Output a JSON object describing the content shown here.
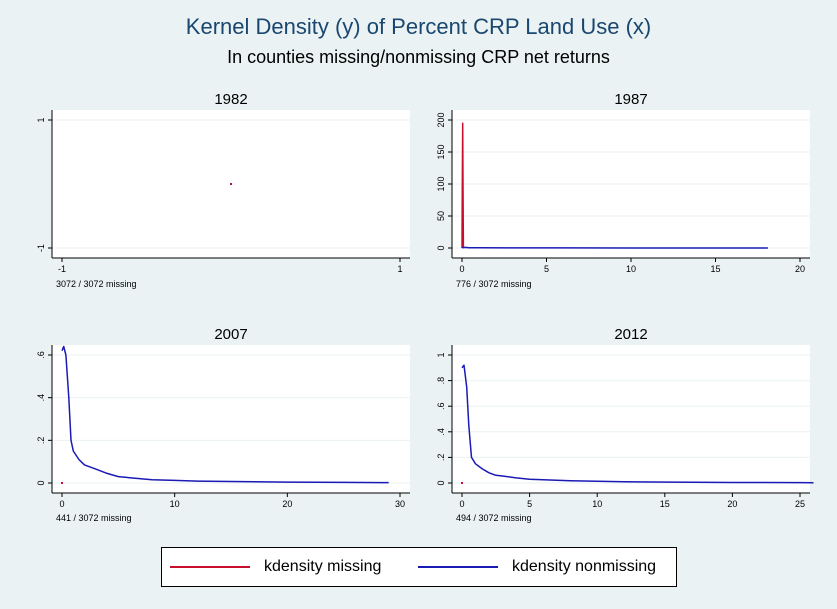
{
  "title": "Kernel Density (y) of Percent CRP Land Use (x)",
  "subtitle": "In counties missing/nonmissing CRP net returns",
  "legend": {
    "items": [
      {
        "label": "kdensity missing",
        "color": "#c8102e"
      },
      {
        "label": "kdensity nonmissing",
        "color": "#1a1ab4"
      }
    ]
  },
  "chart_data": [
    {
      "type": "line",
      "title": "1982",
      "note": "3072 / 3072 missing",
      "xlim": [
        -1,
        1
      ],
      "ylim": [
        -1,
        1
      ],
      "xticks": [
        {
          "v": -1,
          "label": "-1"
        },
        {
          "v": 1,
          "label": "1"
        }
      ],
      "yticks": [
        {
          "v": -1,
          "label": "-1"
        },
        {
          "v": 1,
          "label": "1"
        }
      ],
      "grid": true,
      "series": [
        {
          "name": "kdensity missing",
          "color": "#c8102e",
          "points": [
            [
              0,
              0
            ]
          ]
        }
      ]
    },
    {
      "type": "line",
      "title": "1987",
      "note": "776 / 3072 missing",
      "xlim": [
        0,
        20
      ],
      "ylim": [
        0,
        200
      ],
      "xticks": [
        {
          "v": 0,
          "label": "0"
        },
        {
          "v": 5,
          "label": "5"
        },
        {
          "v": 10,
          "label": "10"
        },
        {
          "v": 15,
          "label": "15"
        },
        {
          "v": 20,
          "label": "20"
        }
      ],
      "yticks": [
        {
          "v": 0,
          "label": "0"
        },
        {
          "v": 50,
          "label": "50"
        },
        {
          "v": 100,
          "label": "100"
        },
        {
          "v": 150,
          "label": "150"
        },
        {
          "v": 200,
          "label": "200"
        }
      ],
      "grid": true,
      "series": [
        {
          "name": "kdensity missing",
          "color": "#c8102e",
          "points": [
            [
              0,
              0
            ],
            [
              0.02,
              100
            ],
            [
              0.04,
              195
            ],
            [
              0.06,
              100
            ],
            [
              0.08,
              0
            ]
          ]
        },
        {
          "name": "kdensity nonmissing",
          "color": "#1a1ab4",
          "points": [
            [
              0,
              0.5
            ],
            [
              0.2,
              1
            ],
            [
              0.4,
              0.5
            ],
            [
              1,
              0.3
            ],
            [
              3,
              0.2
            ],
            [
              6,
              0.1
            ],
            [
              10,
              0.05
            ],
            [
              14,
              0.03
            ],
            [
              18.1,
              0.02
            ]
          ]
        }
      ]
    },
    {
      "type": "line",
      "title": "2007",
      "note": "441 / 3072 missing",
      "xlim": [
        0,
        30
      ],
      "ylim": [
        0,
        0.6
      ],
      "xticks": [
        {
          "v": 0,
          "label": "0"
        },
        {
          "v": 10,
          "label": "10"
        },
        {
          "v": 20,
          "label": "20"
        },
        {
          "v": 30,
          "label": "30"
        }
      ],
      "yticks": [
        {
          "v": 0,
          "label": "0"
        },
        {
          "v": 0.2,
          "label": ".2"
        },
        {
          "v": 0.4,
          "label": ".4"
        },
        {
          "v": 0.6,
          "label": ".6"
        }
      ],
      "grid": true,
      "series": [
        {
          "name": "kdensity missing",
          "color": "#c8102e",
          "points": [
            [
              0,
              0
            ]
          ]
        },
        {
          "name": "kdensity nonmissing",
          "color": "#1a1ab4",
          "points": [
            [
              0,
              0.62
            ],
            [
              0.15,
              0.64
            ],
            [
              0.35,
              0.6
            ],
            [
              0.6,
              0.4
            ],
            [
              0.8,
              0.2
            ],
            [
              1,
              0.15
            ],
            [
              1.5,
              0.11
            ],
            [
              2,
              0.085
            ],
            [
              3,
              0.065
            ],
            [
              4,
              0.045
            ],
            [
              5,
              0.03
            ],
            [
              6,
              0.025
            ],
            [
              7,
              0.02
            ],
            [
              8,
              0.015
            ],
            [
              10,
              0.012
            ],
            [
              12,
              0.009
            ],
            [
              15,
              0.007
            ],
            [
              18,
              0.005
            ],
            [
              20,
              0.004
            ],
            [
              25,
              0.003
            ],
            [
              29,
              0.002
            ]
          ]
        }
      ]
    },
    {
      "type": "line",
      "title": "2012",
      "note": "494 / 3072 missing",
      "xlim": [
        0,
        25
      ],
      "ylim": [
        0,
        1
      ],
      "xticks": [
        {
          "v": 0,
          "label": "0"
        },
        {
          "v": 5,
          "label": "5"
        },
        {
          "v": 10,
          "label": "10"
        },
        {
          "v": 15,
          "label": "15"
        },
        {
          "v": 20,
          "label": "20"
        },
        {
          "v": 25,
          "label": "25"
        }
      ],
      "yticks": [
        {
          "v": 0,
          "label": "0"
        },
        {
          "v": 0.2,
          "label": ".2"
        },
        {
          "v": 0.4,
          "label": ".4"
        },
        {
          "v": 0.6,
          "label": ".6"
        },
        {
          "v": 0.8,
          "label": ".8"
        },
        {
          "v": 1,
          "label": "1"
        }
      ],
      "grid": true,
      "series": [
        {
          "name": "kdensity missing",
          "color": "#c8102e",
          "points": [
            [
              0,
              0
            ]
          ]
        },
        {
          "name": "kdensity nonmissing",
          "color": "#1a1ab4",
          "points": [
            [
              0,
              0.9
            ],
            [
              0.15,
              0.92
            ],
            [
              0.35,
              0.75
            ],
            [
              0.5,
              0.45
            ],
            [
              0.7,
              0.2
            ],
            [
              1,
              0.15
            ],
            [
              1.5,
              0.11
            ],
            [
              2,
              0.08
            ],
            [
              2.5,
              0.06
            ],
            [
              3,
              0.055
            ],
            [
              4,
              0.04
            ],
            [
              5,
              0.03
            ],
            [
              6,
              0.025
            ],
            [
              8,
              0.018
            ],
            [
              10,
              0.014
            ],
            [
              12,
              0.01
            ],
            [
              14,
              0.008
            ],
            [
              17,
              0.006
            ],
            [
              20,
              0.004
            ],
            [
              25,
              0.003
            ],
            [
              26,
              0.002
            ]
          ]
        }
      ]
    }
  ]
}
